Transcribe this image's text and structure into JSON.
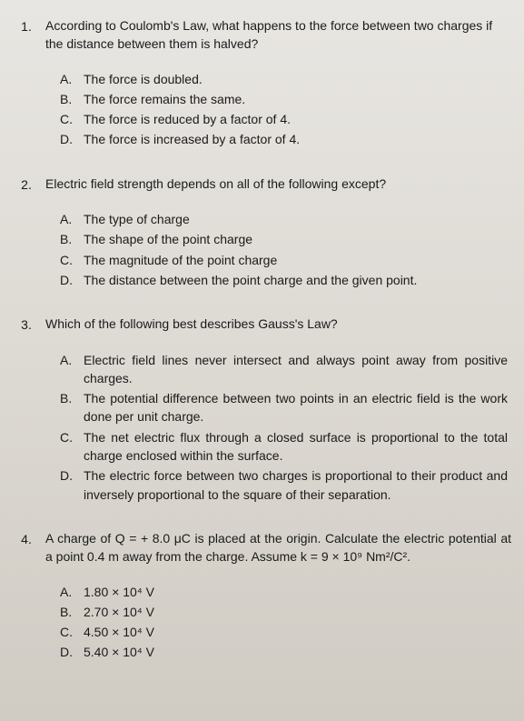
{
  "questions": [
    {
      "num": "1.",
      "text": "According to Coulomb's Law, what happens to the force between two charges if the distance between them is halved?",
      "options": [
        {
          "letter": "A.",
          "text": "The force is doubled."
        },
        {
          "letter": "B.",
          "text": "The force remains the same."
        },
        {
          "letter": "C.",
          "text": "The force is reduced by a factor of 4."
        },
        {
          "letter": "D.",
          "text": "The force is increased by a factor of 4."
        }
      ]
    },
    {
      "num": "2.",
      "text": "Electric field strength depends on all of the following except?",
      "options": [
        {
          "letter": "A.",
          "text": "The type of charge"
        },
        {
          "letter": "B.",
          "text": "The shape of the point charge"
        },
        {
          "letter": "C.",
          "text": "The magnitude of the point charge"
        },
        {
          "letter": "D.",
          "text": "The distance between the point charge and the given point."
        }
      ]
    },
    {
      "num": "3.",
      "text": "Which of the following best describes Gauss's Law?",
      "options": [
        {
          "letter": "A.",
          "text": "Electric field lines never intersect and always point away from positive charges."
        },
        {
          "letter": "B.",
          "text": "The potential difference between two points in an electric field is the work done per unit charge."
        },
        {
          "letter": "C.",
          "text": "The net electric flux through a closed surface is proportional to the total charge enclosed within the surface."
        },
        {
          "letter": "D.",
          "text": "The electric force between two charges is proportional to their product and inversely proportional to the square of their separation."
        }
      ]
    },
    {
      "num": "4.",
      "text": "A charge of Q = + 8.0 μC is placed at the origin. Calculate the electric potential at a point 0.4 m away from the charge. Assume k = 9 × 10⁹ Nm²/C².",
      "options": [
        {
          "letter": "A.",
          "text": "1.80 × 10⁴ V"
        },
        {
          "letter": "B.",
          "text": "2.70 × 10⁴ V"
        },
        {
          "letter": "C.",
          "text": "4.50 × 10⁴ V"
        },
        {
          "letter": "D.",
          "text": "5.40 × 10⁴ V"
        }
      ]
    }
  ]
}
